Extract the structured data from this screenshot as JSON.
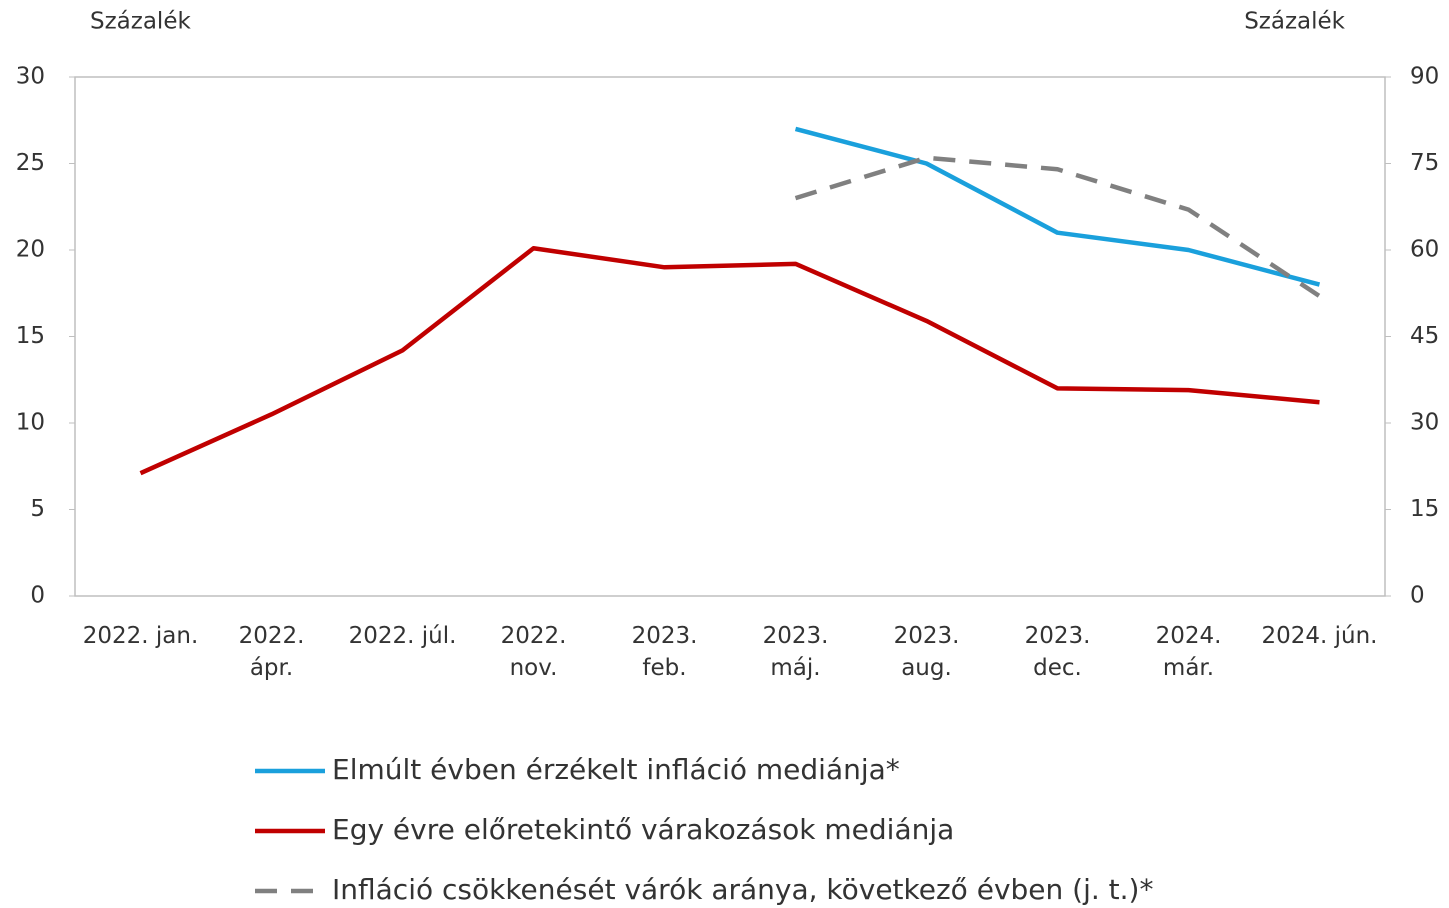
{
  "chart_data": {
    "type": "line",
    "y_label": "Százalék",
    "y2_label": "Százalék",
    "categories": [
      "2022. jan.",
      "2022.\nápr.",
      "2022. júl.",
      "2022.\nnov.",
      "2023.\nfeb.",
      "2023.\nmáj.",
      "2023.\naug.",
      "2023.\ndec.",
      "2024.\nmár.",
      "2024. jún."
    ],
    "series": [
      {
        "name": "Elmúlt évben érzékelt infláció mediánja*",
        "color": "#1aa0dc",
        "dash": false,
        "values": [
          null,
          null,
          null,
          null,
          null,
          27,
          25,
          21,
          20,
          18
        ]
      },
      {
        "name": "Egy évre előretekintő várakozások mediánja",
        "color": "#c00000",
        "dash": false,
        "values": [
          7.1,
          10.5,
          14.2,
          20.1,
          19.0,
          19.2,
          15.9,
          12.0,
          11.9,
          11.2
        ]
      },
      {
        "name": "Infláció csökkenését várók aránya, következő évben (j. t.)*",
        "color": "#808080",
        "dash": true,
        "axis": "y2",
        "values": [
          null,
          null,
          null,
          null,
          null,
          69,
          76,
          74,
          67,
          52
        ]
      }
    ],
    "ylim": [
      0,
      30
    ],
    "yticks": [
      0,
      5,
      10,
      15,
      20,
      25,
      30
    ],
    "y2lim": [
      0,
      90
    ],
    "y2ticks": [
      0,
      15,
      30,
      45,
      60,
      75,
      90
    ],
    "grid": false
  }
}
